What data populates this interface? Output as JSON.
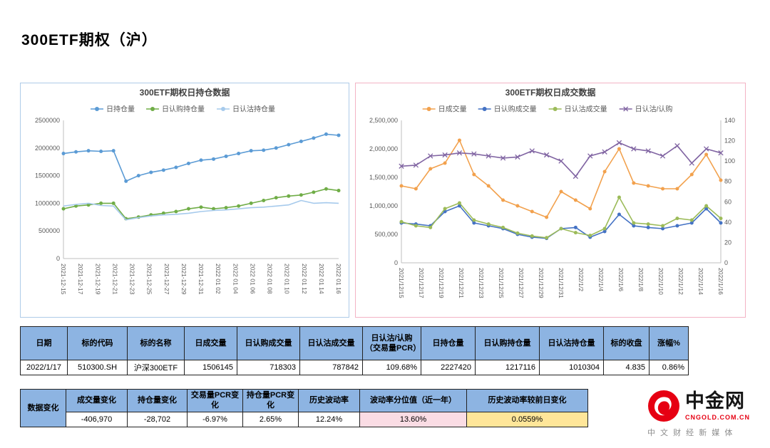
{
  "page_title": "300ETF期权（沪）",
  "chart_data": [
    {
      "type": "line",
      "title": "300ETF期权日持仓数据",
      "legend_position": "top",
      "grid": false,
      "ylim": [
        0,
        2500000
      ],
      "y_ticks": [
        "0",
        "500000",
        "1000000",
        "1500000",
        "2000000",
        "2500000"
      ],
      "x_tick_labels": [
        "2021-12-15",
        "2021-12-17",
        "2021-12-19",
        "2021-12-21",
        "2021-12-23",
        "2021-12-25",
        "2021-12-27",
        "2021-12-29",
        "2021-12-31",
        "2022 01 02",
        "2022 01 04",
        "2022 01 06",
        "2022 01 08",
        "2022 01 10",
        "2022 01 12",
        "2022 01 14",
        "2022 01 16"
      ],
      "categories": [
        "2021/12/15",
        "2021/12/16",
        "2021/12/17",
        "2021/12/20",
        "2021/12/21",
        "2021/12/22",
        "2021/12/23",
        "2021/12/24",
        "2021/12/27",
        "2021/12/28",
        "2021/12/29",
        "2021/12/30",
        "2021/12/31",
        "2022/1/4",
        "2022/1/5",
        "2022/1/6",
        "2022/1/7",
        "2022/1/10",
        "2022/1/11",
        "2022/1/12",
        "2022/1/13",
        "2022/1/14",
        "2022/1/17"
      ],
      "series": [
        {
          "name": "日持仓量",
          "color": "#5b9bd5",
          "marker": "circle",
          "axis": "left",
          "values": [
            1900000,
            1930000,
            1950000,
            1940000,
            1950000,
            1400000,
            1500000,
            1560000,
            1600000,
            1650000,
            1720000,
            1780000,
            1800000,
            1850000,
            1900000,
            1950000,
            1960000,
            2000000,
            2060000,
            2120000,
            2180000,
            2250000,
            2230000
          ]
        },
        {
          "name": "日认购持仓量",
          "color": "#70ad47",
          "marker": "circle",
          "axis": "left",
          "values": [
            900000,
            950000,
            970000,
            1000000,
            1000000,
            720000,
            750000,
            790000,
            820000,
            850000,
            900000,
            930000,
            900000,
            920000,
            950000,
            1000000,
            1050000,
            1100000,
            1130000,
            1150000,
            1200000,
            1260000,
            1230000
          ]
        },
        {
          "name": "日认沽持仓量",
          "color": "#a6caec",
          "marker": "none",
          "axis": "left",
          "values": [
            950000,
            980000,
            1000000,
            960000,
            950000,
            700000,
            740000,
            770000,
            790000,
            800000,
            820000,
            850000,
            870000,
            880000,
            900000,
            920000,
            930000,
            950000,
            970000,
            1050000,
            1000000,
            1010000,
            1000000
          ]
        }
      ]
    },
    {
      "type": "line",
      "title": "300ETF期权日成交数据",
      "legend_position": "top",
      "grid": false,
      "ylim_left": [
        0,
        2500000
      ],
      "ylim_right": [
        0,
        140
      ],
      "y_ticks_left": [
        "0",
        "500,000",
        "1,000,000",
        "1,500,000",
        "2,000,000",
        "2,500,000"
      ],
      "y_ticks_right": [
        "0",
        "20",
        "40",
        "60",
        "80",
        "100",
        "120",
        "140"
      ],
      "x_tick_labels": [
        "2021/12/15",
        "2021/12/17",
        "2021/12/19",
        "2021/12/21",
        "2021/12/23",
        "2021/12/25",
        "2021/12/27",
        "2021/12/29",
        "2021/12/31",
        "2022/1/2",
        "2022/1/4",
        "2022/1/6",
        "2022/1/8",
        "2022/1/10",
        "2022/1/12",
        "2022/1/14",
        "2022/1/16"
      ],
      "categories": [
        "2021/12/15",
        "2021/12/16",
        "2021/12/17",
        "2021/12/20",
        "2021/12/21",
        "2021/12/22",
        "2021/12/23",
        "2021/12/24",
        "2021/12/27",
        "2021/12/28",
        "2021/12/29",
        "2021/12/30",
        "2021/12/31",
        "2022/1/4",
        "2022/1/5",
        "2022/1/6",
        "2022/1/7",
        "2022/1/10",
        "2022/1/11",
        "2022/1/12",
        "2022/1/13",
        "2022/1/14",
        "2022/1/17"
      ],
      "series": [
        {
          "name": "日成交量",
          "color": "#f2a14d",
          "marker": "circle",
          "axis": "left",
          "values": [
            1350000,
            1300000,
            1650000,
            1750000,
            2150000,
            1550000,
            1350000,
            1100000,
            1000000,
            900000,
            800000,
            1250000,
            1100000,
            950000,
            1600000,
            2000000,
            1400000,
            1350000,
            1300000,
            1300000,
            1550000,
            1900000,
            1450000
          ]
        },
        {
          "name": "日认购成交量",
          "color": "#4472c4",
          "marker": "circle",
          "axis": "left",
          "values": [
            700000,
            680000,
            650000,
            900000,
            1000000,
            700000,
            650000,
            600000,
            500000,
            450000,
            430000,
            600000,
            620000,
            450000,
            550000,
            850000,
            650000,
            620000,
            600000,
            650000,
            700000,
            950000,
            700000
          ]
        },
        {
          "name": "日认沽成交量",
          "color": "#9cbb59",
          "marker": "circle",
          "axis": "left",
          "values": [
            720000,
            650000,
            620000,
            950000,
            1050000,
            750000,
            680000,
            620000,
            520000,
            470000,
            440000,
            600000,
            530000,
            480000,
            600000,
            1150000,
            700000,
            680000,
            650000,
            780000,
            750000,
            1000000,
            780000
          ]
        },
        {
          "name": "日认沽/认购",
          "color": "#8064a2",
          "marker": "x",
          "axis": "right",
          "values": [
            95,
            96,
            105,
            106,
            108,
            107,
            105,
            103,
            104,
            110,
            106,
            100,
            85,
            105,
            109,
            118,
            112,
            110,
            105,
            115,
            98,
            112,
            108
          ]
        }
      ]
    }
  ],
  "summary_table": {
    "headers": [
      "日期",
      "标的代码",
      "标的名称",
      "日成交量",
      "日认购成交量",
      "日认沽成交量",
      "日认沽/认购（交易量PCR）",
      "日持仓量",
      "日认购持仓量",
      "日认沽持仓量",
      "标的收盘",
      "涨幅%"
    ],
    "row": [
      "2022/1/17",
      "510300.SH",
      "沪深300ETF",
      "1506145",
      "718303",
      "787842",
      "109.68%",
      "2227420",
      "1217116",
      "1010304",
      "4.835",
      "0.86%"
    ]
  },
  "change_table": {
    "label": "数据变化",
    "headers": [
      "成交量变化",
      "持仓量变化",
      "交易量PCR变化",
      "持仓量PCR变化",
      "历史波动率",
      "波动率分位值（近一年）",
      "历史波动率较前日变化"
    ],
    "row": [
      {
        "value": "-406,970"
      },
      {
        "value": "-28,702"
      },
      {
        "value": "-6.97%"
      },
      {
        "value": "2.65%"
      },
      {
        "value": "12.24%"
      },
      {
        "value": "13.60%",
        "bg": "#fadce4"
      },
      {
        "value": "0.0559%",
        "bg": "#ffe699"
      }
    ]
  },
  "logo": {
    "name": "中金网",
    "domain": "CNGOLD.COM.CN",
    "tagline": "中 文 财 经 新 媒 体",
    "brand_color": "#e60012"
  }
}
